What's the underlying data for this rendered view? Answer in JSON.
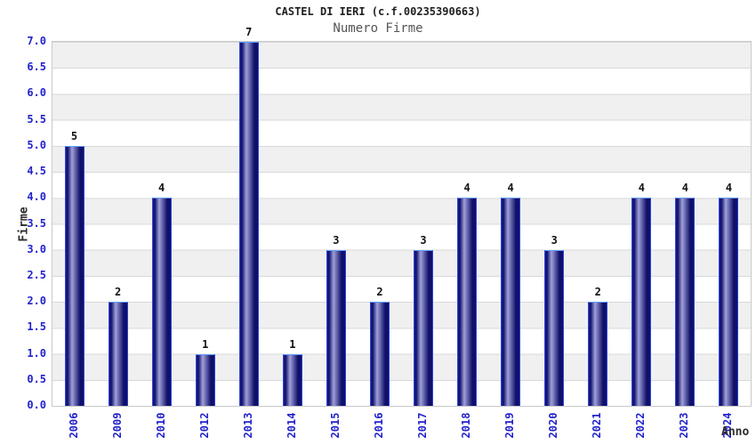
{
  "header": {
    "title": "CASTEL DI IERI (c.f.00235390663)",
    "subtitle": "Numero Firme"
  },
  "chart_data": {
    "type": "bar",
    "title": "CASTEL DI IERI (c.f.00235390663)",
    "subtitle": "Numero Firme",
    "xlabel": "Anno",
    "ylabel": "Firme",
    "categories": [
      "2006",
      "2009",
      "2010",
      "2012",
      "2013",
      "2014",
      "2015",
      "2016",
      "2017",
      "2018",
      "2019",
      "2020",
      "2021",
      "2022",
      "2023",
      "2024"
    ],
    "values": [
      5,
      2,
      4,
      1,
      7,
      1,
      3,
      2,
      3,
      4,
      4,
      3,
      2,
      4,
      4,
      4
    ],
    "ylim": [
      0.0,
      7.0
    ],
    "ytick_step": 0.5,
    "ytick_labels": [
      "0.0",
      "0.5",
      "1.0",
      "1.5",
      "2.0",
      "2.5",
      "3.0",
      "3.5",
      "4.0",
      "4.5",
      "5.0",
      "5.5",
      "6.0",
      "6.5",
      "7.0"
    ],
    "grid": "horizontal-bands-alternating",
    "legend": "none",
    "bar_labels_shown": true
  },
  "colors": {
    "title_text": "#1f1f1f",
    "subtitle_text": "#555555",
    "axis_tick_text": "#2222cc",
    "axis_title_text": "#2b2b2b",
    "bar_value_text": "#111111",
    "band_gray": "#f0f0f0",
    "band_white": "#ffffff",
    "gridline": "#d9d9d9",
    "plot_border": "#c9c9c9",
    "bar_dark": "#10106a",
    "bar_mid": "#1b1b8a",
    "bar_light": "#a0a0da",
    "bar_border_side": "#2e46d8",
    "bar_border_top": "#5e9cff"
  }
}
